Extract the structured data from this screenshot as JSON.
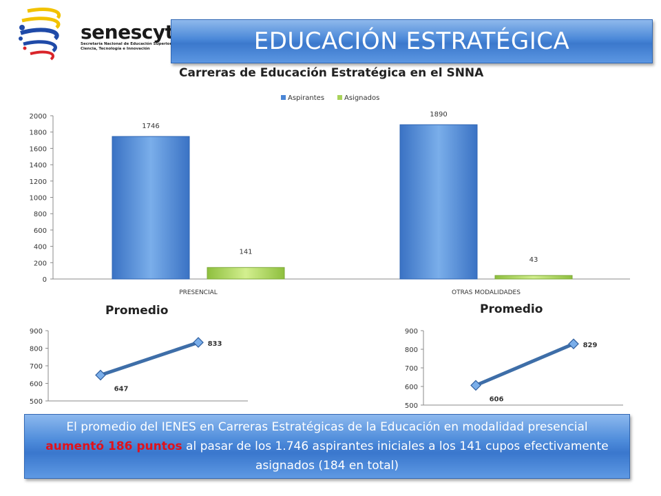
{
  "logo": {
    "name": "senescyt",
    "subtitle": "Secretaría Nacional de Educación Superior, Ciencia, Tecnología e Innovación"
  },
  "header": {
    "title": "EDUCACIÓN ESTRATÉGICA"
  },
  "colors": {
    "banner": "#3b78cc",
    "aspirantes": "#4a86d6",
    "asignados": "#a9d35a",
    "line": "#3e6ea8",
    "highlight": "#e0121b"
  },
  "chart_data": [
    {
      "type": "bar",
      "title": "Carreras de Educación Estratégica en el SNNA",
      "categories": [
        "PRESENCIAL",
        "OTRAS MODALIDADES"
      ],
      "series": [
        {
          "name": "Aspirantes",
          "values": [
            1746,
            1890
          ],
          "labels": [
            "1746",
            "1890"
          ]
        },
        {
          "name": "Asignados",
          "values": [
            141,
            43
          ],
          "labels": [
            "141",
            "43"
          ]
        }
      ],
      "ylim": [
        0,
        2000
      ],
      "yticks": [
        "0",
        "200",
        "400",
        "600",
        "800",
        "1000",
        "1200",
        "1400",
        "1600",
        "1800",
        "2000"
      ],
      "legend": "top-center"
    },
    {
      "type": "line",
      "title": "Promedio",
      "values": [
        647,
        833
      ],
      "labels": [
        "647",
        "833"
      ],
      "ylim": [
        500,
        900
      ],
      "yticks": [
        "500",
        "600",
        "700",
        "800",
        "900"
      ]
    },
    {
      "type": "line",
      "title": "Promedio",
      "values": [
        606,
        829
      ],
      "labels": [
        "606",
        "829"
      ],
      "ylim": [
        500,
        900
      ],
      "yticks": [
        "500",
        "600",
        "700",
        "800",
        "900"
      ]
    }
  ],
  "note": {
    "part1": "El promedio del IENES en Carreras Estratégicas de la Educación en modalidad presencial",
    "highlight": "aumentó 186 puntos",
    "part2": " al pasar de los 1.746 aspirantes iniciales a los 141 cupos efectivamente asignados (184 en total)"
  }
}
